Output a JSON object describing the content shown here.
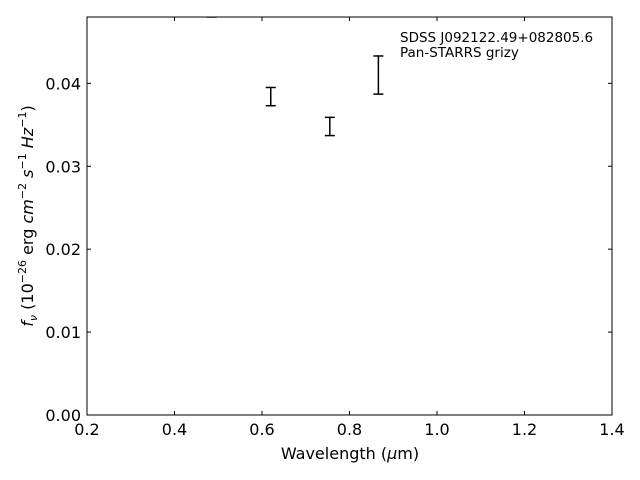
{
  "chart_data": {
    "type": "scatter",
    "title": "",
    "xlabel": "Wavelength (",
    "xlabel_symbol": "μ",
    "xlabel_suffix": "m)",
    "ylabel": "f",
    "ylabel_sub": "ν",
    "ylabel_mid": " (10",
    "ylabel_exp1": "−26",
    "ylabel_rest1": " erg ",
    "ylabel_cm": "cm",
    "ylabel_exp2": "−2",
    "ylabel_s": " s",
    "ylabel_exp3": "−1",
    "ylabel_hz": " Hz",
    "ylabel_exp4": "−1",
    "ylabel_close": ")",
    "xlim": [
      0.2,
      1.4
    ],
    "ylim": [
      0.0,
      0.048
    ],
    "x_ticks": [
      0.2,
      0.4,
      0.6,
      0.8,
      1.0,
      1.2,
      1.4
    ],
    "x_tick_labels": [
      "0.2",
      "0.4",
      "0.6",
      "0.8",
      "1.0",
      "1.2",
      "1.4"
    ],
    "y_ticks": [
      0.0,
      0.01,
      0.02,
      0.03,
      0.04
    ],
    "y_tick_labels": [
      "0.00",
      "0.01",
      "0.02",
      "0.03",
      "0.04"
    ],
    "grid": false,
    "legend_position": "top-right",
    "legend": [
      "SDSS J092122.49+082805.6",
      "Pan-STARRS grizy"
    ],
    "series": [
      {
        "marker": "errorbar",
        "color": "#000000",
        "points": [
          {
            "x": 0.485,
            "y": 0.0485,
            "err": 0.0005
          },
          {
            "x": 0.62,
            "y": 0.0384,
            "err": 0.0011
          },
          {
            "x": 0.755,
            "y": 0.0348,
            "err": 0.0011
          },
          {
            "x": 0.866,
            "y": 0.041,
            "err": 0.0023
          }
        ]
      }
    ]
  }
}
